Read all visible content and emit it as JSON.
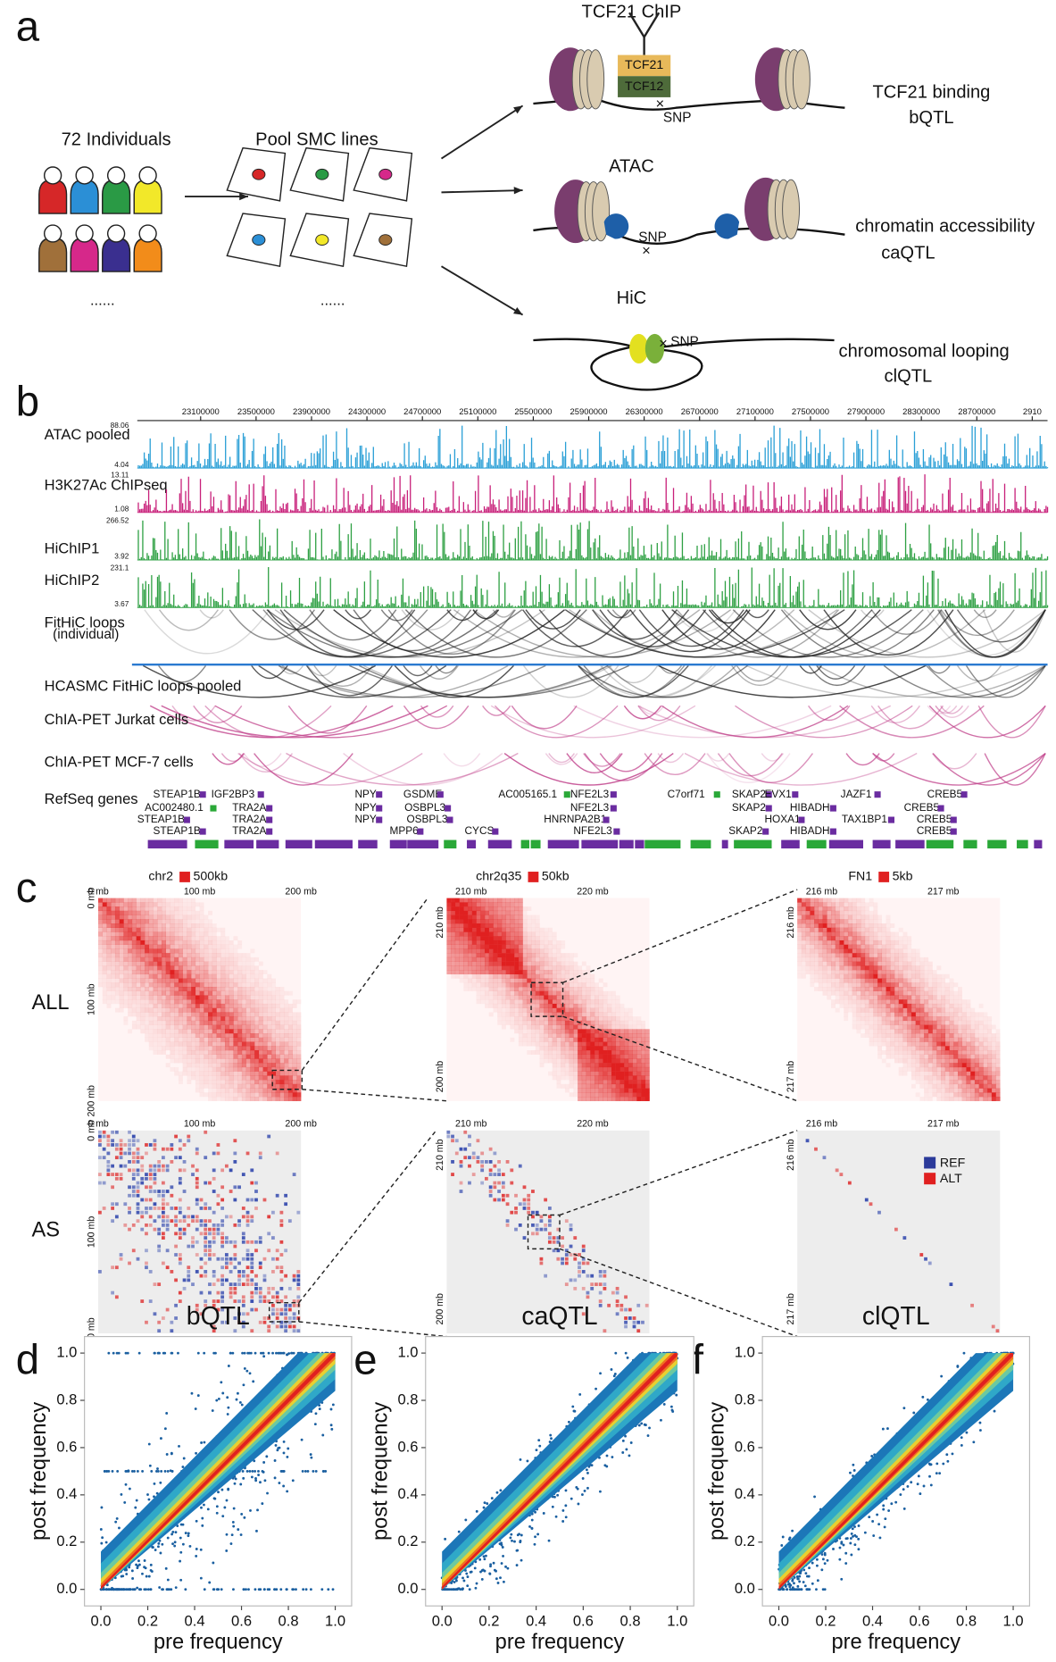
{
  "panel_labels": [
    "a",
    "b",
    "c",
    "d",
    "e",
    "f"
  ],
  "panel_a": {
    "individuals": "72 Individuals",
    "pool": "Pool SMC lines",
    "ellipsis_1": "......",
    "ellipsis_2": "......",
    "factors": [
      "TCF21",
      "TCF12"
    ],
    "assays": [
      {
        "name": "TCF21 ChIP",
        "snp": "SNP",
        "result": "TCF21 binding",
        "qtl": "bQTL"
      },
      {
        "name": "ATAC",
        "snp": "SNP",
        "result": "chromatin accessibility",
        "qtl": "caQTL"
      },
      {
        "name": "HiC",
        "snp": "SNP",
        "result": "chromosomal looping",
        "qtl": "clQTL"
      }
    ]
  },
  "panel_b": {
    "coordinates": [
      "23100000",
      "23500000",
      "23900000",
      "24300000",
      "24700000",
      "25100000",
      "25500000",
      "25900000",
      "26300000",
      "26700000",
      "27100000",
      "27500000",
      "27900000",
      "28300000",
      "28700000",
      "2910"
    ],
    "tracks": [
      {
        "label": "ATAC pooled",
        "max": "88.06",
        "min": "4.04",
        "color": "#2a9fd6"
      },
      {
        "label": "H3K27Ac ChIPseq",
        "max": "13.11",
        "min": "1.08",
        "color": "#c8207a"
      },
      {
        "label": "HiChIP1",
        "max": "266.52",
        "min": "3.92",
        "color": "#2ea043"
      },
      {
        "label": "HiChIP2",
        "max": "231.1",
        "min": "3.67",
        "color": "#2ea043"
      }
    ],
    "loop_tracks": [
      {
        "label": "FitHiC loops",
        "sublabel": "(individual)",
        "color": "#222222"
      },
      {
        "label": "HCASMC FitHiC loops pooled",
        "color": "#222222"
      },
      {
        "label": "ChIA-PET Jurkat cells",
        "color": "#c0408a"
      },
      {
        "label": "ChIA-PET MCF-7 cells",
        "color": "#c0408a"
      }
    ],
    "refseq_label": "RefSeq genes",
    "genes": [
      {
        "name": "STEAP1B",
        "color": "#6a2ca0"
      },
      {
        "name": "IGF2BP3",
        "color": "#6a2ca0"
      },
      {
        "name": "NPY",
        "color": "#6a2ca0"
      },
      {
        "name": "GSDME",
        "color": "#6a2ca0"
      },
      {
        "name": "AC005165.1",
        "color": "#2aa838"
      },
      {
        "name": "NFE2L3",
        "color": "#6a2ca0"
      },
      {
        "name": "C7orf71",
        "color": "#2aa838"
      },
      {
        "name": "SKAP2",
        "color": "#6a2ca0"
      },
      {
        "name": "EVX1",
        "color": "#6a2ca0"
      },
      {
        "name": "JAZF1",
        "color": "#6a2ca0"
      },
      {
        "name": "CREB5",
        "color": "#6a2ca0"
      },
      {
        "name": "AC002480.1",
        "color": "#2aa838"
      },
      {
        "name": "TRA2A",
        "color": "#6a2ca0"
      },
      {
        "name": "NPY",
        "color": "#6a2ca0"
      },
      {
        "name": "OSBPL3",
        "color": "#6a2ca0"
      },
      {
        "name": "NFE2L3",
        "color": "#6a2ca0"
      },
      {
        "name": "SKAP2",
        "color": "#6a2ca0"
      },
      {
        "name": "HIBADH",
        "color": "#6a2ca0"
      },
      {
        "name": "CREB5",
        "color": "#6a2ca0"
      },
      {
        "name": "STEAP1B",
        "color": "#6a2ca0"
      },
      {
        "name": "TRA2A",
        "color": "#6a2ca0"
      },
      {
        "name": "NPY",
        "color": "#6a2ca0"
      },
      {
        "name": "OSBPL3",
        "color": "#6a2ca0"
      },
      {
        "name": "HNRNPA2B1",
        "color": "#6a2ca0"
      },
      {
        "name": "HOXA1",
        "color": "#6a2ca0"
      },
      {
        "name": "TAX1BP1",
        "color": "#6a2ca0"
      },
      {
        "name": "CREB5",
        "color": "#6a2ca0"
      },
      {
        "name": "STEAP1B",
        "color": "#6a2ca0"
      },
      {
        "name": "TRA2A",
        "color": "#6a2ca0"
      },
      {
        "name": "MPP6",
        "color": "#6a2ca0"
      },
      {
        "name": "CYCS",
        "color": "#6a2ca0"
      },
      {
        "name": "NFE2L3",
        "color": "#6a2ca0"
      },
      {
        "name": "SKAP2",
        "color": "#6a2ca0"
      },
      {
        "name": "HIBADH",
        "color": "#6a2ca0"
      },
      {
        "name": "CREB5",
        "color": "#6a2ca0"
      }
    ]
  },
  "panel_c": {
    "rows": [
      "ALL",
      "AS"
    ],
    "columns": [
      {
        "region": "chr2",
        "bin": "500kb",
        "x_ticks": [
          "0 mb",
          "100 mb",
          "200 mb"
        ],
        "y_ticks": [
          "0 mb",
          "100 mb",
          "200 mb"
        ]
      },
      {
        "region": "chr2q35",
        "bin": "50kb",
        "x_ticks": [
          "210 mb",
          "220 mb"
        ],
        "y_ticks": [
          "210 mb",
          "200 mb"
        ]
      },
      {
        "region": "FN1",
        "bin": "5kb",
        "x_ticks": [
          "216 mb",
          "217 mb"
        ],
        "y_ticks": [
          "216 mb",
          "217 mb"
        ]
      }
    ],
    "legend": [
      {
        "name": "REF",
        "color": "#2b3a9a"
      },
      {
        "name": "ALT",
        "color": "#e02020"
      }
    ]
  },
  "chart_data": [
    {
      "type": "scatter",
      "title": "bQTL",
      "xlabel": "pre frequency",
      "ylabel": "post frequency",
      "xlim": [
        -0.07,
        1.07
      ],
      "ylim": [
        -0.07,
        1.07
      ],
      "xticks": [
        {
          "value": 0,
          "label": "0.0"
        },
        0.2,
        0.4,
        0.6,
        0.8,
        {
          "value": 1,
          "label": "1.0"
        }
      ],
      "yticks": [
        {
          "value": 0,
          "label": "0.0"
        },
        0.2,
        0.4,
        0.6,
        0.8,
        {
          "value": 1,
          "label": "1.0"
        }
      ]
    },
    {
      "type": "scatter",
      "title": "caQTL",
      "xlabel": "pre frequency",
      "ylabel": "post frequency",
      "xlim": [
        -0.07,
        1.07
      ],
      "ylim": [
        -0.07,
        1.07
      ],
      "xticks": [
        {
          "value": 0,
          "label": "0.0"
        },
        0.2,
        0.4,
        0.6,
        0.8,
        {
          "value": 1,
          "label": "1.0"
        }
      ],
      "yticks": [
        {
          "value": 0,
          "label": "0.0"
        },
        0.2,
        0.4,
        0.6,
        0.8,
        {
          "value": 1,
          "label": "1.0"
        }
      ]
    },
    {
      "type": "scatter",
      "title": "clQTL",
      "xlabel": "pre frequency",
      "ylabel": "post frequency",
      "xlim": [
        -0.07,
        1.07
      ],
      "ylim": [
        -0.07,
        1.07
      ],
      "xticks": [
        {
          "value": 0,
          "label": "0.0"
        },
        0.2,
        0.4,
        0.6,
        0.8,
        {
          "value": 1,
          "label": "1.0"
        }
      ],
      "yticks": [
        {
          "value": 0,
          "label": "0.0"
        },
        0.2,
        0.4,
        0.6,
        0.8,
        {
          "value": 1,
          "label": "1.0"
        }
      ]
    }
  ]
}
